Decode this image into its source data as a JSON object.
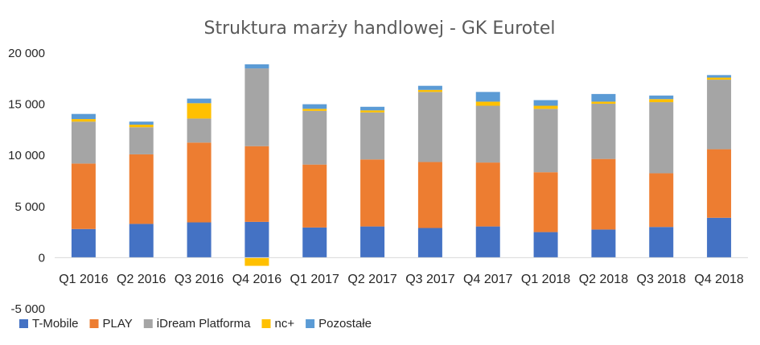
{
  "chart_data": {
    "type": "bar",
    "stacked": true,
    "title": "Struktura marży handlowej - GK Eurotel",
    "xlabel": "",
    "ylabel": "",
    "ylim": [
      -5000,
      20000
    ],
    "yticks": [
      -5000,
      0,
      5000,
      10000,
      15000,
      20000
    ],
    "ytick_labels": [
      "-5 000",
      "0",
      "5 000",
      "10 000",
      "15 000",
      "20 000"
    ],
    "grid": false,
    "legend_position": "bottom-left",
    "categories": [
      "Q1 2016",
      "Q2 2016",
      "Q3 2016",
      "Q4 2016",
      "Q1 2017",
      "Q2 2017",
      "Q3 2017",
      "Q4 2017",
      "Q1 2018",
      "Q2 2018",
      "Q3 2018",
      "Q4 2018"
    ],
    "series": [
      {
        "name": "T-Mobile",
        "color": "#4472C4",
        "values": [
          2800,
          3300,
          3450,
          3500,
          2950,
          3050,
          2900,
          3050,
          2500,
          2750,
          3000,
          3900
        ]
      },
      {
        "name": "PLAY",
        "color": "#ED7D31",
        "values": [
          6400,
          6800,
          7800,
          7400,
          6150,
          6550,
          6450,
          6250,
          5850,
          6900,
          5250,
          6700
        ]
      },
      {
        "name": "iDream Platforma",
        "color": "#A5A5A5",
        "values": [
          4100,
          2650,
          2350,
          7600,
          5250,
          4600,
          6850,
          5550,
          6200,
          5400,
          6950,
          6800
        ]
      },
      {
        "name": "nc+",
        "color": "#FFC000",
        "values": [
          250,
          250,
          1500,
          -800,
          200,
          200,
          200,
          400,
          300,
          200,
          300,
          200
        ]
      },
      {
        "name": "Pozostałe",
        "color": "#5B9BD5",
        "values": [
          500,
          300,
          450,
          400,
          450,
          350,
          400,
          950,
          550,
          750,
          350,
          250
        ]
      }
    ]
  }
}
